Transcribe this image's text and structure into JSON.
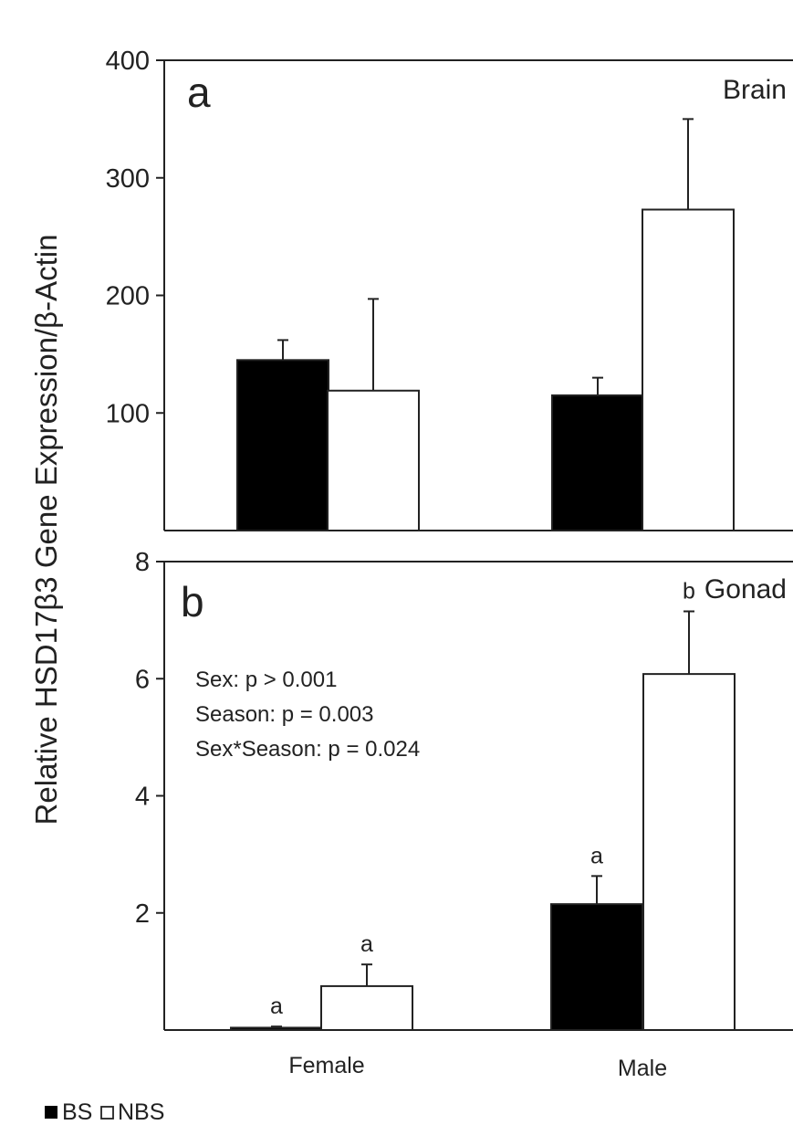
{
  "colors": {
    "bs": "#000000",
    "nbs": "#ffffff",
    "axis": "#222222"
  },
  "ylabel": "Relative HSD17β3 Gene Expression/β-Actin",
  "legend": {
    "placement": "bottom-left",
    "items": [
      {
        "label": "BS",
        "color": "#000000"
      },
      {
        "label": "NBS",
        "color": "#ffffff"
      }
    ]
  },
  "chart_data": [
    {
      "type": "bar",
      "panel_letter": "a",
      "tissue": "Brain",
      "categories": [
        "Female",
        "Male"
      ],
      "ylim": [
        0,
        400
      ],
      "yticks": [
        100,
        200,
        300,
        400
      ],
      "series": [
        {
          "name": "BS",
          "values": [
            145,
            115
          ],
          "errors": [
            17,
            15
          ],
          "letters": []
        },
        {
          "name": "NBS",
          "values": [
            119,
            273
          ],
          "errors": [
            78,
            77
          ],
          "letters": []
        }
      ],
      "stats": []
    },
    {
      "type": "bar",
      "panel_letter": "b",
      "tissue": "Gonad",
      "categories": [
        "Female",
        "Male"
      ],
      "ylim": [
        0,
        8
      ],
      "yticks": [
        2,
        4,
        6,
        8
      ],
      "series": [
        {
          "name": "BS",
          "values": [
            0.04,
            2.15
          ],
          "errors": [
            0.02,
            0.48
          ],
          "letters": [
            "a",
            "a"
          ]
        },
        {
          "name": "NBS",
          "values": [
            0.75,
            6.08
          ],
          "errors": [
            0.37,
            1.07
          ],
          "letters": [
            "a",
            "b"
          ]
        }
      ],
      "stats": [
        "Sex: p > 0.001",
        "Season: p = 0.003",
        "Sex*Season: p = 0.024"
      ]
    }
  ]
}
